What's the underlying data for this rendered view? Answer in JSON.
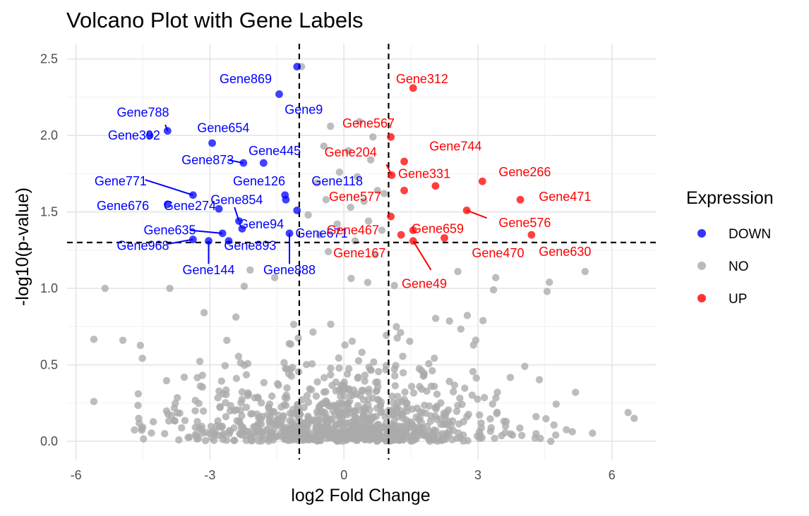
{
  "chart_data": {
    "type": "scatter",
    "title": "Volcano Plot with Gene Labels",
    "xlabel": "log2 Fold Change",
    "ylabel": "-log10(p-value)",
    "xlim": [
      -6.2,
      7.0
    ],
    "ylim": [
      -0.12,
      2.6
    ],
    "xticks": [
      -6,
      -3,
      0,
      3,
      6
    ],
    "xtick_labels": [
      "-6",
      "-3",
      "0",
      "3",
      "6"
    ],
    "yticks": [
      0.0,
      0.5,
      1.0,
      1.5,
      2.0,
      2.5
    ],
    "ytick_labels": [
      "0.0",
      "0.5",
      "1.0",
      "1.5",
      "2.0",
      "2.5"
    ],
    "grid": true,
    "thresholds": {
      "log2fc": [
        -1,
        1
      ],
      "neg_log10_p": 1.3
    },
    "legend": {
      "title": "Expression",
      "placement": "right",
      "entries": [
        {
          "label": "DOWN",
          "color": "#0000ff"
        },
        {
          "label": "NO",
          "color": "#aaaaaa"
        },
        {
          "label": "UP",
          "color": "#ff0000"
        }
      ]
    },
    "colors": {
      "DOWN": "#0000ff",
      "NO": "#aaaaaa",
      "UP": "#ff0000"
    },
    "series": [
      {
        "name": "DOWN",
        "points": [
          {
            "gene": "Gene869",
            "x": -1.05,
            "y": 2.45
          },
          {
            "gene": "Gene9",
            "x": -1.45,
            "y": 2.27
          },
          {
            "gene": "Gene788",
            "x": -3.95,
            "y": 2.03
          },
          {
            "gene": "Gene392",
            "x": -4.35,
            "y": 2.0
          },
          {
            "gene": "Gene654",
            "x": -2.95,
            "y": 1.95
          },
          {
            "gene": "Gene873",
            "x": -2.25,
            "y": 1.82
          },
          {
            "gene": "Gene445",
            "x": -1.8,
            "y": 1.82
          },
          {
            "gene": "Gene771",
            "x": -3.38,
            "y": 1.61
          },
          {
            "gene": "Gene126",
            "x": -1.32,
            "y": 1.61
          },
          {
            "gene": "Gene118",
            "x": -1.3,
            "y": 1.58
          },
          {
            "gene": "Gene676",
            "x": -3.95,
            "y": 1.55
          },
          {
            "gene": "Gene274",
            "x": -2.8,
            "y": 1.52
          },
          {
            "gene": "Gene854",
            "x": -2.35,
            "y": 1.44
          },
          {
            "gene": "Gene94",
            "x": -2.28,
            "y": 1.39
          },
          {
            "gene": "Gene671",
            "x": -1.05,
            "y": 1.51
          },
          {
            "gene": "Gene635",
            "x": -2.72,
            "y": 1.36
          },
          {
            "gene": "Gene888",
            "x": -1.22,
            "y": 1.36
          },
          {
            "gene": "Gene968",
            "x": -3.38,
            "y": 1.32
          },
          {
            "gene": "Gene893",
            "x": -2.58,
            "y": 1.31
          },
          {
            "gene": "Gene144",
            "x": -3.03,
            "y": 1.31
          }
        ]
      },
      {
        "name": "UP",
        "points": [
          {
            "gene": "Gene312",
            "x": 1.55,
            "y": 2.31
          },
          {
            "gene": "Gene567",
            "x": 1.05,
            "y": 1.99
          },
          {
            "gene": "Gene744",
            "x": 1.35,
            "y": 1.83
          },
          {
            "gene": "Gene204",
            "x": 1.07,
            "y": 1.74
          },
          {
            "gene": "Gene331",
            "x": 2.05,
            "y": 1.67
          },
          {
            "gene": "Gene266",
            "x": 3.1,
            "y": 1.7
          },
          {
            "gene": "Gene577",
            "x": 1.35,
            "y": 1.64
          },
          {
            "gene": "Gene471",
            "x": 3.95,
            "y": 1.58
          },
          {
            "gene": "Gene576",
            "x": 2.75,
            "y": 1.51
          },
          {
            "gene": "Gene467",
            "x": 1.05,
            "y": 1.47
          },
          {
            "gene": "Gene659",
            "x": 1.55,
            "y": 1.38
          },
          {
            "gene": "Gene167",
            "x": 1.28,
            "y": 1.35
          },
          {
            "gene": "Gene470",
            "x": 2.25,
            "y": 1.33
          },
          {
            "gene": "Gene630",
            "x": 4.2,
            "y": 1.35
          },
          {
            "gene": "Gene49",
            "x": 1.55,
            "y": 1.31
          }
        ]
      }
    ],
    "labels": [
      {
        "gene": "Gene869",
        "lx": -2.2,
        "ly": 2.37,
        "anchor": "middle"
      },
      {
        "gene": "Gene9",
        "lx": -0.9,
        "ly": 2.17,
        "anchor": "middle"
      },
      {
        "gene": "Gene788",
        "lx": -4.5,
        "ly": 2.15,
        "anchor": "middle",
        "sx": -4.0,
        "sy": 2.07
      },
      {
        "gene": "Gene392",
        "lx": -4.7,
        "ly": 2.0,
        "anchor": "middle"
      },
      {
        "gene": "Gene654",
        "lx": -2.7,
        "ly": 2.05,
        "anchor": "middle"
      },
      {
        "gene": "Gene873",
        "lx": -3.05,
        "ly": 1.84,
        "anchor": "middle",
        "sx": -2.6,
        "sy": 1.84
      },
      {
        "gene": "Gene445",
        "lx": -1.55,
        "ly": 1.9,
        "anchor": "middle"
      },
      {
        "gene": "Gene771",
        "lx": -5.0,
        "ly": 1.7,
        "anchor": "middle",
        "sx": -4.45,
        "sy": 1.71
      },
      {
        "gene": "Gene126",
        "lx": -1.9,
        "ly": 1.7,
        "anchor": "middle"
      },
      {
        "gene": "Gene118",
        "lx": -0.15,
        "ly": 1.7,
        "anchor": "middle"
      },
      {
        "gene": "Gene676",
        "lx": -4.95,
        "ly": 1.54,
        "anchor": "middle"
      },
      {
        "gene": "Gene274",
        "lx": -3.45,
        "ly": 1.54,
        "anchor": "middle"
      },
      {
        "gene": "Gene854",
        "lx": -2.4,
        "ly": 1.58,
        "anchor": "middle",
        "sx": -2.45,
        "sy": 1.53
      },
      {
        "gene": "Gene94",
        "lx": -1.85,
        "ly": 1.42,
        "anchor": "middle"
      },
      {
        "gene": "Gene671",
        "lx": -0.5,
        "ly": 1.36,
        "anchor": "middle"
      },
      {
        "gene": "Gene635",
        "lx": -3.9,
        "ly": 1.38,
        "anchor": "middle",
        "sx": -3.45,
        "sy": 1.38
      },
      {
        "gene": "Gene968",
        "lx": -4.5,
        "ly": 1.28,
        "anchor": "middle",
        "sx": -3.95,
        "sy": 1.29
      },
      {
        "gene": "Gene893",
        "lx": -2.1,
        "ly": 1.28,
        "anchor": "middle"
      },
      {
        "gene": "Gene144",
        "lx": -3.03,
        "ly": 1.12,
        "anchor": "middle",
        "sx": -3.03,
        "sy": 1.16
      },
      {
        "gene": "Gene888",
        "lx": -1.22,
        "ly": 1.12,
        "anchor": "middle",
        "sx": -1.22,
        "sy": 1.16
      },
      {
        "gene": "Gene312",
        "lx": 1.75,
        "ly": 2.37,
        "anchor": "middle"
      },
      {
        "gene": "Gene567",
        "lx": 0.55,
        "ly": 2.08,
        "anchor": "middle"
      },
      {
        "gene": "Gene744",
        "lx": 2.5,
        "ly": 1.93,
        "anchor": "middle"
      },
      {
        "gene": "Gene204",
        "lx": 0.15,
        "ly": 1.89,
        "anchor": "middle",
        "sx": 0.95,
        "sy": 1.81
      },
      {
        "gene": "Gene331",
        "lx": 1.8,
        "ly": 1.75,
        "anchor": "middle"
      },
      {
        "gene": "Gene266",
        "lx": 4.05,
        "ly": 1.76,
        "anchor": "middle"
      },
      {
        "gene": "Gene577",
        "lx": 0.25,
        "ly": 1.6,
        "anchor": "middle"
      },
      {
        "gene": "Gene471",
        "lx": 4.95,
        "ly": 1.6,
        "anchor": "middle"
      },
      {
        "gene": "Gene576",
        "lx": 4.05,
        "ly": 1.43,
        "anchor": "middle",
        "sx": 3.2,
        "sy": 1.46
      },
      {
        "gene": "Gene467",
        "lx": 0.2,
        "ly": 1.38,
        "anchor": "middle"
      },
      {
        "gene": "Gene659",
        "lx": 2.1,
        "ly": 1.39,
        "anchor": "middle"
      },
      {
        "gene": "Gene167",
        "lx": 0.35,
        "ly": 1.23,
        "anchor": "middle"
      },
      {
        "gene": "Gene470",
        "lx": 3.45,
        "ly": 1.23,
        "anchor": "middle"
      },
      {
        "gene": "Gene630",
        "lx": 4.95,
        "ly": 1.24,
        "anchor": "middle"
      },
      {
        "gene": "Gene49",
        "lx": 1.8,
        "ly": 1.03,
        "anchor": "middle",
        "sx": 1.95,
        "sy": 1.12
      }
    ],
    "background_points": {
      "description_count": 950,
      "y_rate": 6.0,
      "x_sigma": 1.75,
      "x_range": [
        -5.6,
        6.5
      ],
      "extra": [
        {
          "x": -0.95,
          "y": 2.45
        },
        {
          "x": -0.3,
          "y": 2.06
        },
        {
          "x": 0.35,
          "y": 2.09
        },
        {
          "x": 0.65,
          "y": 1.99
        },
        {
          "x": -0.45,
          "y": 1.93
        },
        {
          "x": 0.1,
          "y": 1.9
        },
        {
          "x": 0.6,
          "y": 1.84
        },
        {
          "x": -0.1,
          "y": 1.76
        },
        {
          "x": 0.3,
          "y": 1.73
        },
        {
          "x": -0.6,
          "y": 1.69
        },
        {
          "x": 0.75,
          "y": 1.64
        },
        {
          "x": 0.9,
          "y": 1.62
        },
        {
          "x": -0.4,
          "y": 1.58
        },
        {
          "x": 0.45,
          "y": 1.57
        },
        {
          "x": 0.15,
          "y": 1.53
        },
        {
          "x": -0.8,
          "y": 1.48
        },
        {
          "x": 0.55,
          "y": 1.44
        },
        {
          "x": -0.15,
          "y": 1.42
        },
        {
          "x": 0.85,
          "y": 1.38
        },
        {
          "x": -0.55,
          "y": 1.35
        },
        {
          "x": 0.25,
          "y": 1.31
        },
        {
          "x": -0.35,
          "y": 1.24
        },
        {
          "x": 0.7,
          "y": 1.22
        },
        {
          "x": 5.4,
          "y": 1.11
        },
        {
          "x": 4.6,
          "y": 1.04
        },
        {
          "x": -5.35,
          "y": 1.0
        },
        {
          "x": -3.9,
          "y": 1.0
        },
        {
          "x": 6.5,
          "y": 0.15
        },
        {
          "x": -5.6,
          "y": 0.26
        },
        {
          "x": -4.95,
          "y": 0.66
        },
        {
          "x": 3.4,
          "y": 1.07
        },
        {
          "x": -2.1,
          "y": 1.12
        },
        {
          "x": 2.55,
          "y": 1.11
        },
        {
          "x": -1.55,
          "y": 1.07
        },
        {
          "x": 4.55,
          "y": 0.98
        },
        {
          "x": 3.35,
          "y": 0.99
        }
      ]
    }
  }
}
